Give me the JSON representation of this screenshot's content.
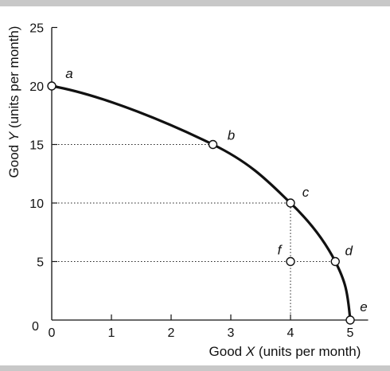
{
  "chart_data": {
    "type": "line",
    "title": "",
    "xlabel": "Good X (units per month)",
    "ylabel": "Good Y (units per month)",
    "xlabel_parts": [
      "Good ",
      "X",
      " (units per month)"
    ],
    "ylabel_parts": [
      "Good ",
      "Y",
      " (units per month)"
    ],
    "xlim": [
      0,
      5.3
    ],
    "ylim": [
      0,
      25
    ],
    "xticks": [
      0,
      1,
      2,
      3,
      4,
      5
    ],
    "yticks": [
      5,
      10,
      15,
      20,
      25
    ],
    "grid": false,
    "series": [
      {
        "x": [
          0,
          2.7,
          4,
          4.75,
          5
        ],
        "y": [
          20,
          15,
          10,
          5,
          0
        ]
      }
    ],
    "points": [
      {
        "label": "a",
        "x": 0,
        "y": 20
      },
      {
        "label": "b",
        "x": 2.7,
        "y": 15
      },
      {
        "label": "c",
        "x": 4,
        "y": 10
      },
      {
        "label": "d",
        "x": 4.75,
        "y": 5
      },
      {
        "label": "e",
        "x": 5,
        "y": 0
      },
      {
        "label": "f",
        "x": 4,
        "y": 5
      }
    ],
    "reference_lines": [
      {
        "from": [
          0,
          15
        ],
        "to": [
          2.7,
          15
        ]
      },
      {
        "from": [
          0,
          10
        ],
        "to": [
          4,
          10
        ]
      },
      {
        "from": [
          0,
          5
        ],
        "to": [
          4.75,
          5
        ]
      },
      {
        "from": [
          4,
          0
        ],
        "to": [
          4,
          10
        ]
      }
    ]
  }
}
